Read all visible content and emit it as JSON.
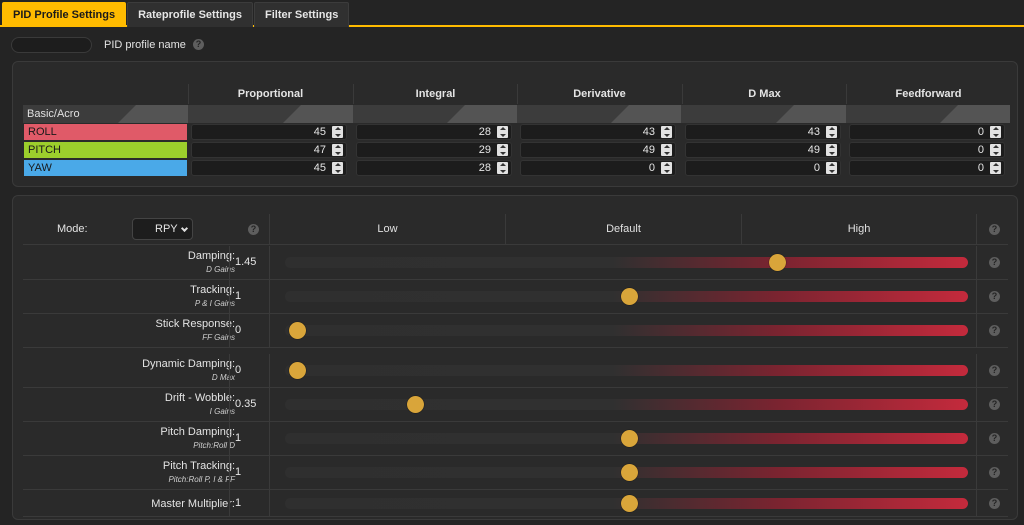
{
  "tabs": [
    {
      "label": "PID Profile Settings",
      "active": true
    },
    {
      "label": "Rateprofile Settings",
      "active": false
    },
    {
      "label": "Filter Settings",
      "active": false
    }
  ],
  "profile": {
    "name_value": "",
    "name_label": "PID profile name",
    "help_icon": "question-circle-icon"
  },
  "pid_table": {
    "columns": [
      {
        "first": "P",
        "rest": "roportional"
      },
      {
        "first": "I",
        "rest": "ntegral"
      },
      {
        "first": "D",
        "rest": "erivative"
      },
      {
        "first": "D",
        "rest": " Max"
      },
      {
        "first": "F",
        "rest": "eedforward"
      }
    ],
    "section_label": "Basic/Acro",
    "rows": [
      {
        "axis": "ROLL",
        "color": "#e05a68",
        "values": [
          "45",
          "28",
          "43",
          "43",
          "0"
        ]
      },
      {
        "axis": "PITCH",
        "color": "#9ccf2c",
        "values": [
          "47",
          "29",
          "49",
          "49",
          "0"
        ]
      },
      {
        "axis": "YAW",
        "color": "#4aa9e8",
        "values": [
          "45",
          "28",
          "0",
          "0",
          "0"
        ]
      }
    ]
  },
  "sliders": {
    "mode_label": "Mode:",
    "mode_value": "RPY",
    "levels": [
      "Low",
      "Default",
      "High"
    ],
    "rows": [
      {
        "label": "Damping:",
        "sub": "D Gains",
        "value": "1.45",
        "position": 0.72
      },
      {
        "label": "Tracking:",
        "sub": "P & I Gains",
        "value": "1",
        "position": 0.503
      },
      {
        "label": "Stick Response:",
        "sub": "FF Gains",
        "value": "0",
        "position": 0.018
      },
      {
        "label": "Dynamic Damping:",
        "sub": "D Max",
        "value": "0",
        "position": 0.018
      },
      {
        "label": "Drift - Wobble:",
        "sub": "I Gains",
        "value": "0.35",
        "position": 0.19
      },
      {
        "label": "Pitch Damping:",
        "sub": "Pitch:Roll D",
        "value": "1",
        "position": 0.503
      },
      {
        "label": "Pitch Tracking:",
        "sub": "Pitch:Roll P, I & FF",
        "value": "1",
        "position": 0.503
      },
      {
        "label": "Master Multiplier:",
        "sub": "",
        "value": "1",
        "position": 0.503
      }
    ]
  },
  "colors": {
    "accent": "#ffbb00",
    "thumb": "#d9a53a",
    "track_high": "#c42a3c"
  }
}
